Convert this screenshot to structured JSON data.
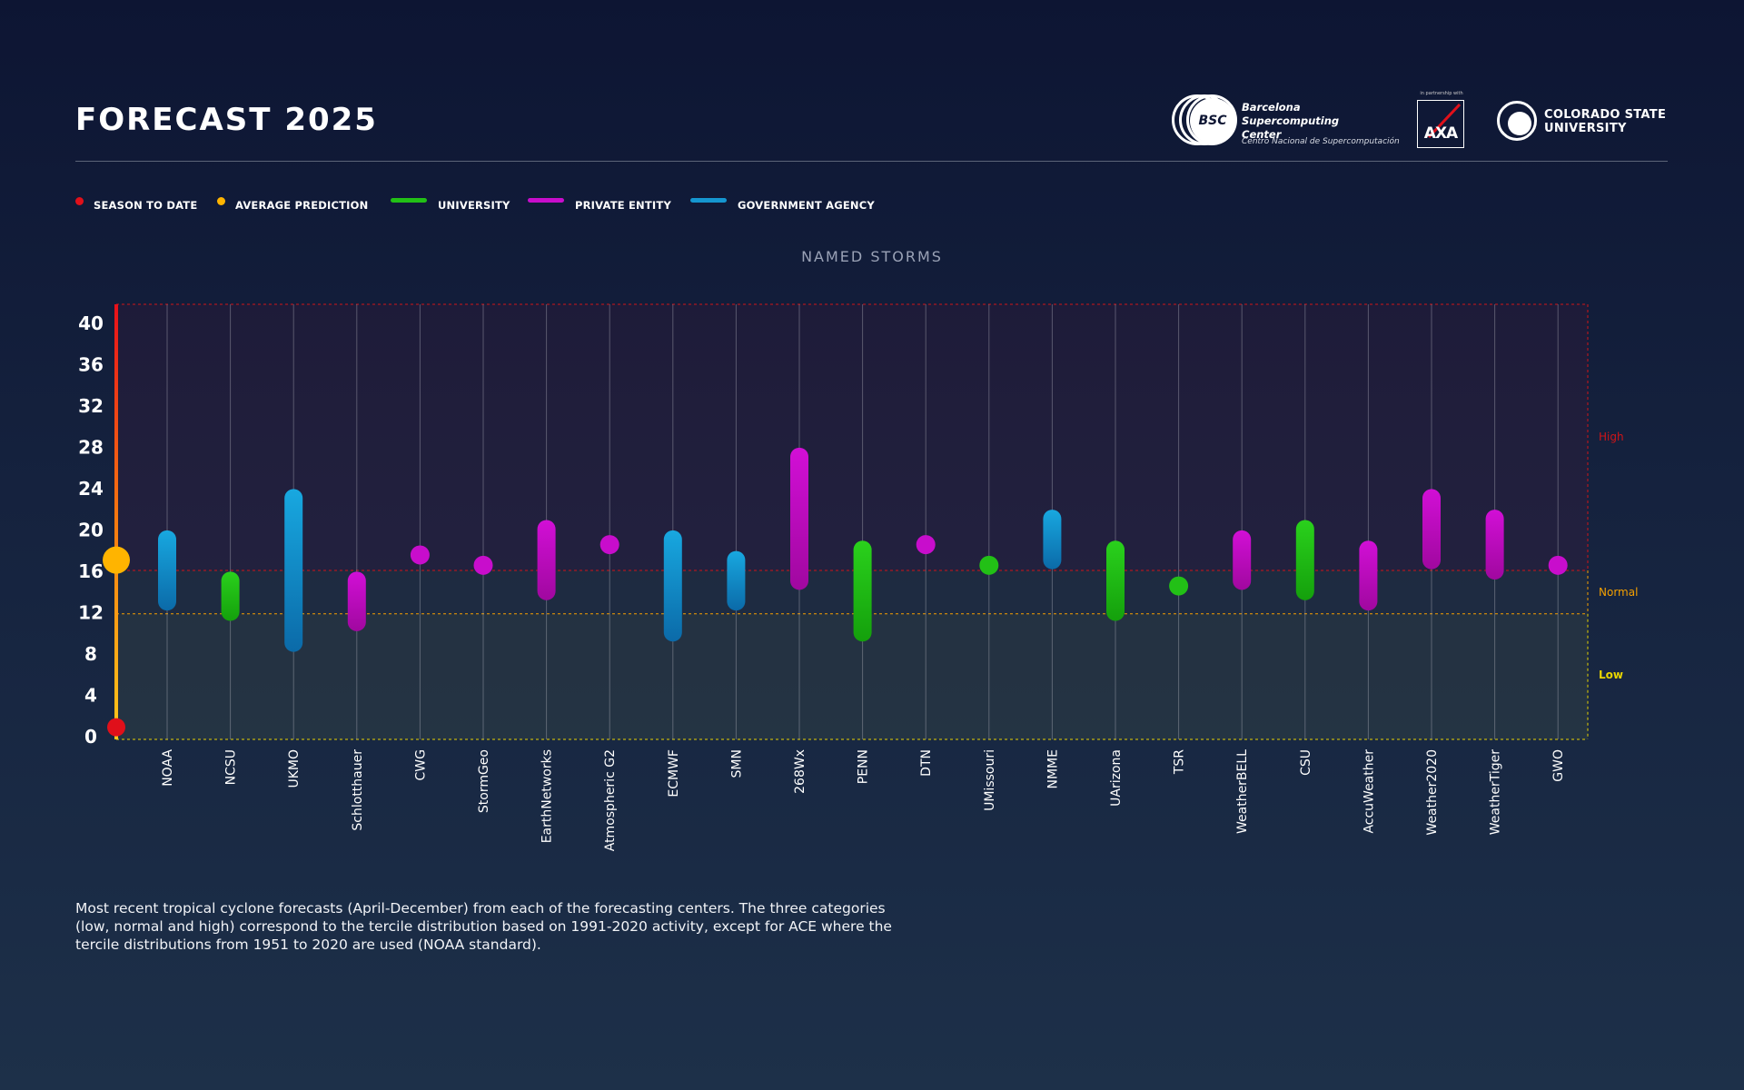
{
  "header": {
    "title": "FORECAST 2025",
    "logos": {
      "bsc": {
        "badge": "BSC",
        "name_lines": [
          "Barcelona",
          "Supercomputing",
          "Center"
        ],
        "subtitle": "Centro Nacional de Supercomputación"
      },
      "axa": {
        "small_text": "in partnership with",
        "wordmark": "AXA"
      },
      "csu": {
        "name_lines": [
          "COLORADO STATE",
          "UNIVERSITY"
        ]
      }
    }
  },
  "legend": [
    {
      "label": "SEASON TO DATE",
      "kind": "dot",
      "color": "#e0101a"
    },
    {
      "label": "AVERAGE PREDICTION",
      "kind": "dot",
      "color": "#ffb400"
    },
    {
      "label": "UNIVERSITY",
      "kind": "line",
      "color": "#22c016"
    },
    {
      "label": "PRIVATE ENTITY",
      "kind": "line",
      "color": "#c80dcc"
    },
    {
      "label": "GOVERNMENT AGENCY",
      "kind": "line",
      "color": "#1596d0"
    }
  ],
  "chart_data": {
    "type": "range",
    "title": "NAMED STORMS",
    "ylim": [
      0,
      42
    ],
    "yticks": [
      0,
      4,
      8,
      12,
      16,
      20,
      24,
      28,
      32,
      36,
      40
    ],
    "season_to_date": 1,
    "average_prediction": 17,
    "terciles": [
      {
        "label": "High",
        "from": 16,
        "to": 42,
        "color": "#d01418"
      },
      {
        "label": "Normal",
        "from": 11.8,
        "to": 16,
        "color": "#f5a000"
      },
      {
        "label": "Low",
        "from": 0,
        "to": 11.8,
        "color": "#e9d500"
      }
    ],
    "type_colors": {
      "university": "#22c016",
      "private": "#c80dcc",
      "government": "#1596d0"
    },
    "forecasts": [
      {
        "name": "NOAA",
        "type": "government",
        "low": 13,
        "high": 19
      },
      {
        "name": "NCSU",
        "type": "university",
        "low": 12,
        "high": 15
      },
      {
        "name": "UKMO",
        "type": "government",
        "low": 9,
        "high": 23
      },
      {
        "name": "Schlotthauer",
        "type": "private",
        "low": 11,
        "high": 15
      },
      {
        "name": "CWG",
        "type": "private",
        "low": 17.5,
        "high": 17.5
      },
      {
        "name": "StormGeo",
        "type": "private",
        "low": 16.5,
        "high": 16.5
      },
      {
        "name": "EarthNetworks",
        "type": "private",
        "low": 14,
        "high": 20
      },
      {
        "name": "Atmospheric G2",
        "type": "private",
        "low": 18.5,
        "high": 18.5
      },
      {
        "name": "ECMWF",
        "type": "government",
        "low": 10,
        "high": 19
      },
      {
        "name": "SMN",
        "type": "government",
        "low": 13,
        "high": 17
      },
      {
        "name": "268Wx",
        "type": "private",
        "low": 15,
        "high": 27
      },
      {
        "name": "PENN",
        "type": "university",
        "low": 10,
        "high": 18
      },
      {
        "name": "DTN",
        "type": "private",
        "low": 18.5,
        "high": 18.5
      },
      {
        "name": "UMissouri",
        "type": "university",
        "low": 16.5,
        "high": 16.5
      },
      {
        "name": "NMME",
        "type": "government",
        "low": 17,
        "high": 21
      },
      {
        "name": "UArizona",
        "type": "university",
        "low": 12,
        "high": 18
      },
      {
        "name": "TSR",
        "type": "university",
        "low": 14.5,
        "high": 14.5
      },
      {
        "name": "WeatherBELL",
        "type": "private",
        "low": 15,
        "high": 19
      },
      {
        "name": "CSU",
        "type": "university",
        "low": 14,
        "high": 20
      },
      {
        "name": "AccuWeather",
        "type": "private",
        "low": 13,
        "high": 18
      },
      {
        "name": "Weather2020",
        "type": "private",
        "low": 17,
        "high": 23
      },
      {
        "name": "WeatherTiger",
        "type": "private",
        "low": 16,
        "high": 21
      },
      {
        "name": "GWO",
        "type": "private",
        "low": 16.5,
        "high": 16.5
      }
    ]
  },
  "footnote": "Most recent tropical cyclone forecasts (April-December) from each of the forecasting centers. The three categories (low, normal and high) correspond to the tercile distribution based on 1991-2020 activity, except for ACE where the tercile distributions from 1951 to 2020 are used (NOAA standard)."
}
